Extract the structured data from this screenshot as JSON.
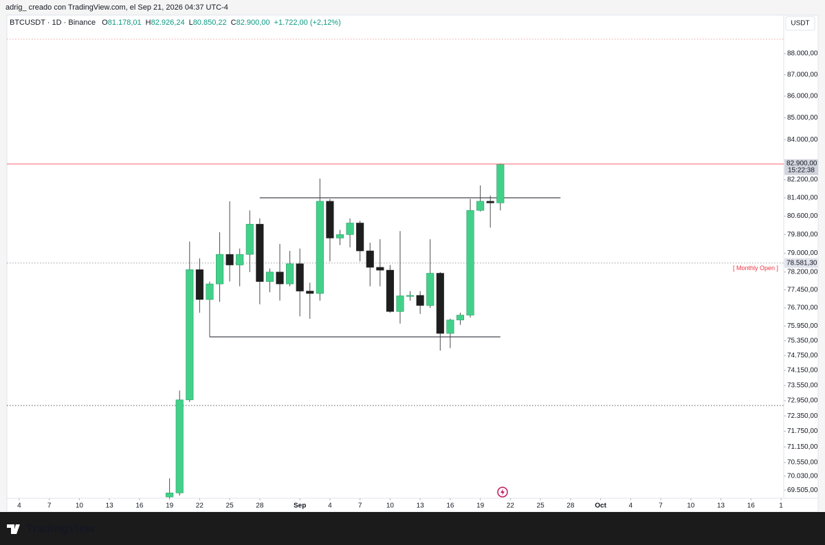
{
  "header": {
    "text": "adrig_  creado con TradingView.com, el Sep 21, 2026 04:37 UTC-4"
  },
  "footer": {
    "brand": "TradingView"
  },
  "chart_data": {
    "type": "candlestick",
    "symbol": "BTCUSDT · 1D · Binance",
    "legend_items": [
      {
        "key": "O",
        "value": "81.178,01"
      },
      {
        "key": "H",
        "value": "82.926,24"
      },
      {
        "key": "L",
        "value": "80.850,22"
      },
      {
        "key": "C",
        "value": "82.900,00"
      }
    ],
    "change": "+1.722,00 (+2,12%)",
    "currency": "USDT",
    "up_color": "#43d18a",
    "down_color": "#1e1e1e",
    "wick_color": "#4a4a4a",
    "x": [
      "2026-08-19",
      "2026-08-20",
      "2026-08-21",
      "2026-08-22",
      "2026-08-23",
      "2026-08-24",
      "2026-08-25",
      "2026-08-26",
      "2026-08-27",
      "2026-08-28",
      "2026-08-29",
      "2026-08-30",
      "2026-08-31",
      "2026-09-01",
      "2026-09-02",
      "2026-09-03",
      "2026-09-04",
      "2026-09-05",
      "2026-09-06",
      "2026-09-07",
      "2026-09-08",
      "2026-09-09",
      "2026-09-10",
      "2026-09-11",
      "2026-09-12",
      "2026-09-13",
      "2026-09-14",
      "2026-09-15",
      "2026-09-16",
      "2026-09-17",
      "2026-09-18",
      "2026-09-19",
      "2026-09-20",
      "2026-09-21"
    ],
    "open": [
      69250,
      69400,
      72980,
      78300,
      77050,
      77700,
      78950,
      78500,
      78950,
      80250,
      77800,
      78200,
      77700,
      78550,
      77400,
      77300,
      81250,
      79650,
      79800,
      80300,
      79100,
      78400,
      78280,
      76550,
      77200,
      77220,
      76800,
      78150,
      75650,
      76200,
      76400,
      80850,
      81250,
      81178.01
    ],
    "high": [
      69950,
      73350,
      79500,
      78780,
      77800,
      79900,
      81250,
      79200,
      80850,
      80500,
      78350,
      79400,
      79100,
      79200,
      77750,
      82250,
      81350,
      80000,
      80500,
      80400,
      79450,
      79600,
      78500,
      79950,
      77400,
      77400,
      79600,
      78200,
      76250,
      76500,
      81350,
      81950,
      81500,
      82926.24
    ],
    "low": [
      69200,
      69300,
      72900,
      76500,
      75500,
      76950,
      77800,
      77600,
      78200,
      76850,
      77350,
      77000,
      77600,
      76350,
      76250,
      77000,
      78650,
      79350,
      79250,
      78650,
      77600,
      77600,
      76500,
      76050,
      77000,
      76450,
      76700,
      74950,
      75050,
      76000,
      76300,
      80800,
      80100,
      80850.22
    ],
    "close": [
      69400,
      72980,
      78300,
      77050,
      77700,
      78950,
      78500,
      78950,
      80250,
      77800,
      78200,
      77700,
      78550,
      77400,
      77300,
      81250,
      79650,
      79800,
      80300,
      79100,
      78400,
      78280,
      76550,
      77200,
      77220,
      76800,
      78150,
      75650,
      76200,
      76400,
      80850,
      81250,
      81178,
      82900
    ],
    "xlim": [
      "2026-08-02T18:30Z",
      "2026-10-19T06:30Z"
    ],
    "xticks": [
      {
        "value": "2026-08-04",
        "label": "4"
      },
      {
        "value": "2026-08-07",
        "label": "7"
      },
      {
        "value": "2026-08-10",
        "label": "10"
      },
      {
        "value": "2026-08-13",
        "label": "13"
      },
      {
        "value": "2026-08-16",
        "label": "16"
      },
      {
        "value": "2026-08-19",
        "label": "19"
      },
      {
        "value": "2026-08-22",
        "label": "22"
      },
      {
        "value": "2026-08-25",
        "label": "25"
      },
      {
        "value": "2026-08-28",
        "label": "28"
      },
      {
        "value": "2026-09-01",
        "label": "Sep"
      },
      {
        "value": "2026-09-04",
        "label": "4"
      },
      {
        "value": "2026-09-07",
        "label": "7"
      },
      {
        "value": "2026-09-10",
        "label": "10"
      },
      {
        "value": "2026-09-13",
        "label": "13"
      },
      {
        "value": "2026-09-16",
        "label": "16"
      },
      {
        "value": "2026-09-19",
        "label": "19"
      },
      {
        "value": "2026-09-22",
        "label": "22"
      },
      {
        "value": "2026-09-25",
        "label": "25"
      },
      {
        "value": "2026-09-28",
        "label": "28"
      },
      {
        "value": "2026-10-01",
        "label": "Oct"
      },
      {
        "value": "2026-10-04",
        "label": "4"
      },
      {
        "value": "2026-10-07",
        "label": "7"
      },
      {
        "value": "2026-10-10",
        "label": "10"
      },
      {
        "value": "2026-10-13",
        "label": "13"
      },
      {
        "value": "2026-10-16",
        "label": "16"
      },
      {
        "value": "2026-10-19",
        "label": "1"
      }
    ],
    "ylim": [
      69200,
      89850
    ],
    "log_scale": true,
    "grid": false,
    "yticks": [
      {
        "value": 88000,
        "label": "88.000,00"
      },
      {
        "value": 87000,
        "label": "87.000,00"
      },
      {
        "value": 86000,
        "label": "86.000,00"
      },
      {
        "value": 85000,
        "label": "85.000,00"
      },
      {
        "value": 84000,
        "label": "84.000,00"
      },
      {
        "value": 82200,
        "label": "82.200,00"
      },
      {
        "value": 81400,
        "label": "81.400,00"
      },
      {
        "value": 80600,
        "label": "80.600,00"
      },
      {
        "value": 79800,
        "label": "79.800,00"
      },
      {
        "value": 79000,
        "label": "79.000,00"
      },
      {
        "value": 78200,
        "label": "78.200,00"
      },
      {
        "value": 77450,
        "label": "77.450,00"
      },
      {
        "value": 76700,
        "label": "76.700,00"
      },
      {
        "value": 75950,
        "label": "75.950,00"
      },
      {
        "value": 75350,
        "label": "75.350,00"
      },
      {
        "value": 74750,
        "label": "74.750,00"
      },
      {
        "value": 74150,
        "label": "74.150,00"
      },
      {
        "value": 73550,
        "label": "73.550,00"
      },
      {
        "value": 72950,
        "label": "72.950,00"
      },
      {
        "value": 72350,
        "label": "72.350,00"
      },
      {
        "value": 71750,
        "label": "71.750,00"
      },
      {
        "value": 71150,
        "label": "71.150,00"
      },
      {
        "value": 70550,
        "label": "70.550,00"
      },
      {
        "value": 70030,
        "label": "70.030,00"
      },
      {
        "value": 69505,
        "label": "69.505,00"
      }
    ],
    "levels": [
      {
        "price": 81400,
        "from": "2026-08-28",
        "to": "2026-09-27",
        "style": "solid",
        "color": "#131722"
      },
      {
        "price": 75510,
        "from": "2026-08-23",
        "to": "2026-09-21",
        "style": "solid",
        "color": "#131722"
      },
      {
        "price": 72760,
        "style": "dotted",
        "color": "#555555"
      },
      {
        "price": 88690,
        "style": "dotted",
        "color": "#f0a0a0"
      }
    ],
    "last_price": {
      "value": 82900,
      "label": "82.900,00",
      "countdown": "15:22:38",
      "color": "#f23645"
    },
    "monthly_open": {
      "value": 78581.3,
      "label": "78.581,30",
      "name": "[ Monthly Open ]",
      "color": "#f23645"
    }
  }
}
